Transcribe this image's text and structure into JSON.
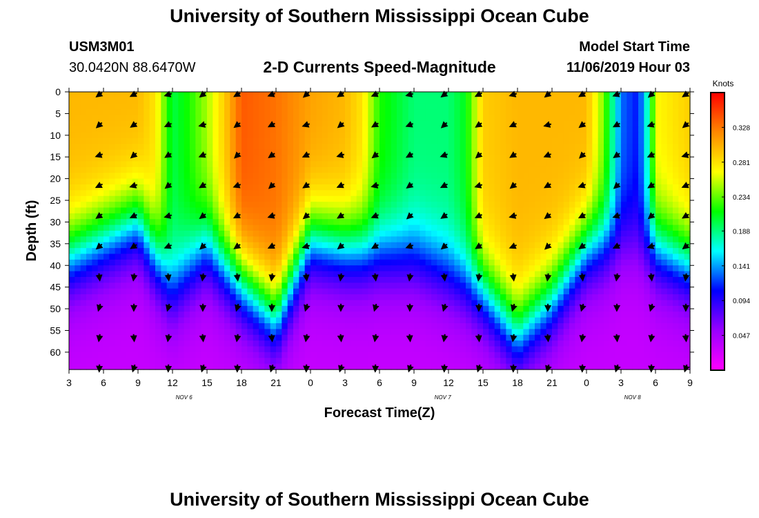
{
  "header": {
    "title": "University of Southern Mississippi Ocean Cube",
    "station_id": "USM3M01",
    "coords": "30.0420N 88.6470W",
    "subtitle": "2-D Currents Speed-Magnitude",
    "model_label": "Model Start Time",
    "model_time": "11/06/2019 Hour 03"
  },
  "footer": {
    "title": "University of Southern Mississippi Ocean Cube"
  },
  "chart_data": {
    "type": "heatmap",
    "title": "2-D Currents Speed-Magnitude",
    "xlabel": "Forecast Time(Z)",
    "ylabel": "Depth (ft)",
    "x_ticks": [
      "3",
      "6",
      "9",
      "12",
      "15",
      "18",
      "21",
      "0",
      "3",
      "6",
      "9",
      "12",
      "15",
      "18",
      "21",
      "0",
      "3",
      "6",
      "9"
    ],
    "x_hours": [
      0,
      3,
      6,
      9,
      12,
      15,
      18,
      21,
      24,
      27,
      30,
      33,
      36,
      39,
      42,
      45,
      48,
      51,
      54
    ],
    "day_labels": [
      {
        "label": "NOV 6",
        "hour": 10
      },
      {
        "label": "NOV 7",
        "hour": 32.5
      },
      {
        "label": "NOV 8",
        "hour": 49
      }
    ],
    "y_ticks": [
      "0",
      "5",
      "10",
      "15",
      "20",
      "25",
      "30",
      "35",
      "40",
      "45",
      "50",
      "55",
      "60"
    ],
    "y_values": [
      0,
      5,
      10,
      15,
      20,
      25,
      30,
      35,
      40,
      45,
      50,
      55,
      60
    ],
    "ylim": [
      0,
      64
    ],
    "xlim": [
      0,
      54
    ],
    "colorbar": {
      "label": "Knots",
      "ticks": [
        "0.328",
        "0.281",
        "0.234",
        "0.188",
        "0.141",
        "0.094",
        "0.047"
      ],
      "tick_values": [
        0.328,
        0.281,
        0.234,
        0.188,
        0.141,
        0.094,
        0.047
      ],
      "range": [
        0.0,
        0.375
      ],
      "colors": [
        "#ff00ff",
        "#9900ff",
        "#0000ff",
        "#00ffff",
        "#00ff00",
        "#ffff00",
        "#ff8800",
        "#ff0000"
      ]
    },
    "surface_speed_profile": [
      {
        "hour": 0,
        "s": 0.3
      },
      {
        "hour": 3,
        "s": 0.3
      },
      {
        "hour": 6,
        "s": 0.3
      },
      {
        "hour": 7.5,
        "s": 0.28
      },
      {
        "hour": 9,
        "s": 0.2
      },
      {
        "hour": 10.5,
        "s": 0.22
      },
      {
        "hour": 12,
        "s": 0.25
      },
      {
        "hour": 13.5,
        "s": 0.29
      },
      {
        "hour": 15,
        "s": 0.34
      },
      {
        "hour": 18,
        "s": 0.33
      },
      {
        "hour": 21,
        "s": 0.31
      },
      {
        "hour": 24,
        "s": 0.3
      },
      {
        "hour": 25.5,
        "s": 0.28
      },
      {
        "hour": 27,
        "s": 0.22
      },
      {
        "hour": 30,
        "s": 0.19
      },
      {
        "hour": 33,
        "s": 0.19
      },
      {
        "hour": 34.5,
        "s": 0.21
      },
      {
        "hour": 36,
        "s": 0.29
      },
      {
        "hour": 39,
        "s": 0.3
      },
      {
        "hour": 42,
        "s": 0.3
      },
      {
        "hour": 45,
        "s": 0.3
      },
      {
        "hour": 46.5,
        "s": 0.24
      },
      {
        "hour": 48,
        "s": 0.13
      },
      {
        "hour": 49.5,
        "s": 0.11
      },
      {
        "hour": 50.5,
        "s": 0.19
      },
      {
        "hour": 51,
        "s": 0.27
      },
      {
        "hour": 54,
        "s": 0.29
      }
    ],
    "depth_decay": [
      {
        "hour": 0,
        "d": 38
      },
      {
        "hour": 6,
        "d": 30
      },
      {
        "hour": 9,
        "d": 46
      },
      {
        "hour": 12,
        "d": 36
      },
      {
        "hour": 15,
        "d": 44
      },
      {
        "hour": 18,
        "d": 52
      },
      {
        "hour": 21,
        "d": 34
      },
      {
        "hour": 24,
        "d": 36
      },
      {
        "hour": 30,
        "d": 38
      },
      {
        "hour": 36,
        "d": 46
      },
      {
        "hour": 39,
        "d": 56
      },
      {
        "hour": 42,
        "d": 48
      },
      {
        "hour": 45,
        "d": 36
      },
      {
        "hour": 48,
        "d": 34
      },
      {
        "hour": 51,
        "d": 36
      },
      {
        "hour": 54,
        "d": 40
      }
    ],
    "arrow_hours": [
      3,
      6,
      9,
      12,
      15,
      18,
      21,
      24,
      27,
      30,
      33,
      36,
      39,
      42,
      45,
      48,
      51,
      54
    ],
    "arrow_depths": [
      0,
      7,
      14,
      21,
      28,
      35,
      42,
      49,
      56,
      63
    ],
    "arrow_direction_note": "mostly toward west-southwest near surface, south below 40 ft"
  }
}
